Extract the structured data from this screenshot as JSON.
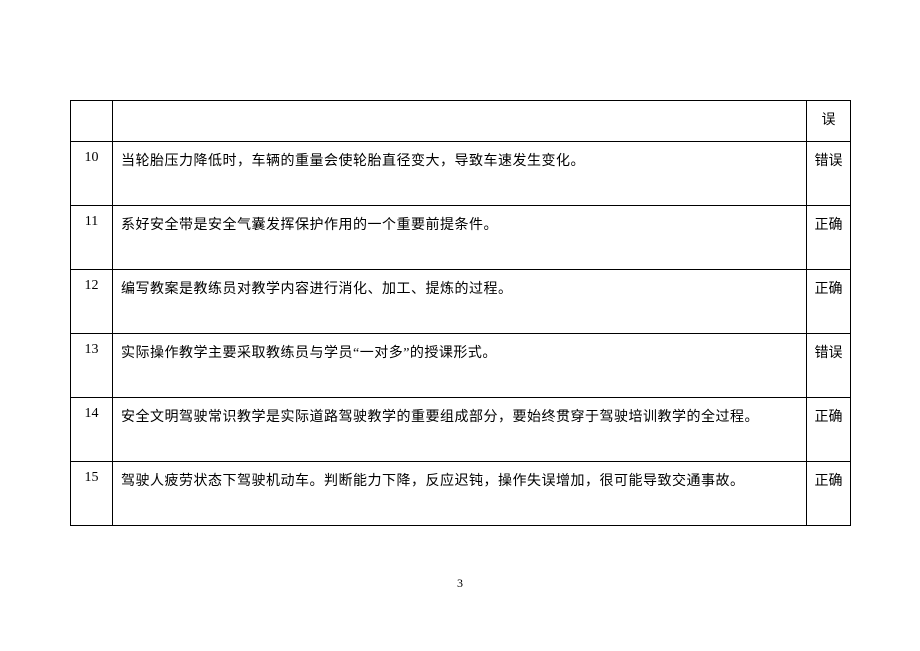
{
  "table": {
    "border_color": "#000000",
    "background_color": "#ffffff",
    "font_size_pt": 10.5,
    "rows": [
      {
        "num": "",
        "question": "",
        "answer": "误"
      },
      {
        "num": "10",
        "question": "当轮胎压力降低时，车辆的重量会使轮胎直径变大，导致车速发生变化。",
        "answer": "错误"
      },
      {
        "num": "11",
        "question": "系好安全带是安全气囊发挥保护作用的一个重要前提条件。",
        "answer": "正确"
      },
      {
        "num": "12",
        "question": "编写教案是教练员对教学内容进行消化、加工、提炼的过程。",
        "answer": "正确"
      },
      {
        "num": "13",
        "question": "实际操作教学主要采取教练员与学员“一对多”的授课形式。",
        "answer": "错误"
      },
      {
        "num": "14",
        "question": "安全文明驾驶常识教学是实际道路驾驶教学的重要组成部分，要始终贯穿于驾驶培训教学的全过程。",
        "answer": "正确"
      },
      {
        "num": "15",
        "question": "驾驶人疲劳状态下驾驶机动车。判断能力下降，反应迟钝，操作失误增加，很可能导致交通事故。",
        "answer": "正确"
      }
    ]
  },
  "page_number": "3",
  "colors": {
    "text": "#000000",
    "background": "#ffffff",
    "border": "#000000"
  }
}
